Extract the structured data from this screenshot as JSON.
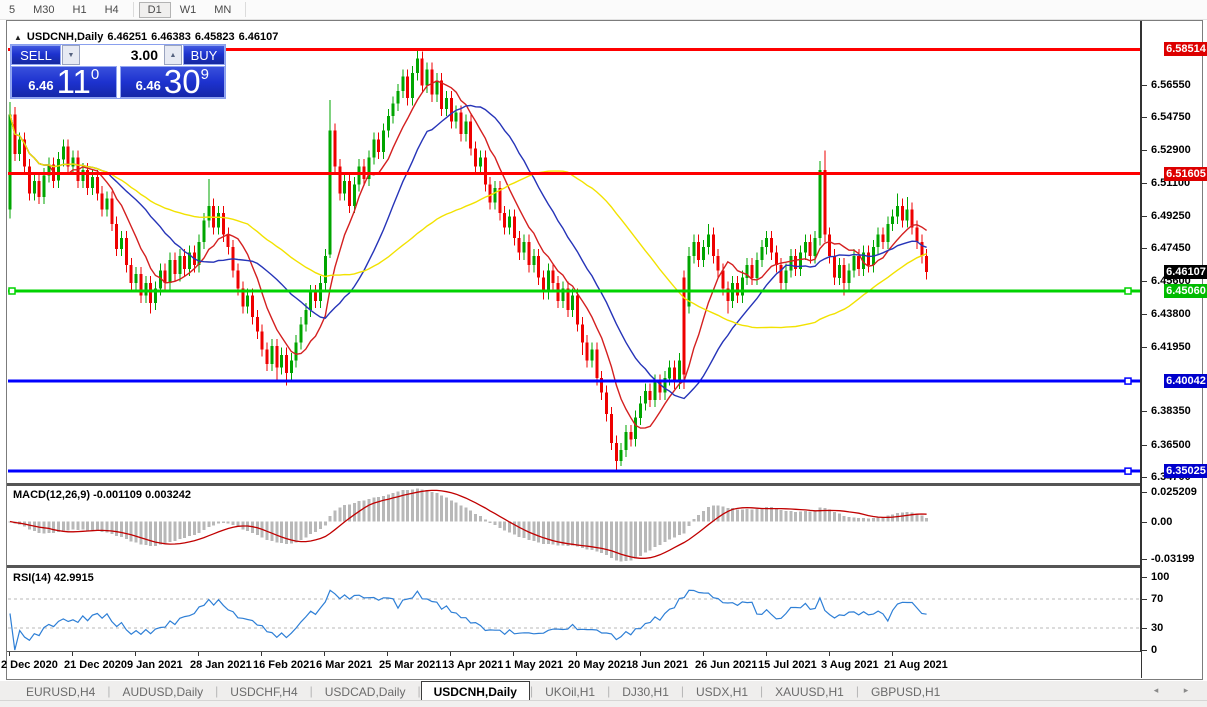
{
  "toolbar": {
    "items": [
      "5",
      "M30",
      "H1",
      "H4",
      "D1",
      "W1",
      "MN"
    ],
    "active": "D1"
  },
  "window_info": {
    "collapse_icon": "▲",
    "title": "USDCNH,Daily",
    "open": "6.46251",
    "high": "6.46383",
    "low": "6.45823",
    "close": "6.46107"
  },
  "one_click": {
    "sell_label": "SELL",
    "buy_label": "BUY",
    "volume": "3.00",
    "spin_down_icon": "▼",
    "spin_up_icon": "▲",
    "bid": {
      "prefix": "6.46",
      "big": "11",
      "sup": "0"
    },
    "ask": {
      "prefix": "6.46",
      "big": "30",
      "sup": "9"
    }
  },
  "chart_data": {
    "type": "candlestick",
    "symbol": "USDCNH",
    "timeframe": "Daily",
    "up_color": "#00a500",
    "down_color": "#ee0000",
    "y_axis": {
      "range": [
        6.3442,
        6.596
      ],
      "ticks": [
        {
          "label": "6.56550",
          "price": 6.5655
        },
        {
          "label": "6.54750",
          "price": 6.5475
        },
        {
          "label": "6.52900",
          "price": 6.529
        },
        {
          "label": "6.51100",
          "price": 6.511
        },
        {
          "label": "6.49250",
          "price": 6.4925
        },
        {
          "label": "6.47450",
          "price": 6.4745
        },
        {
          "label": "6.45600",
          "price": 6.456
        },
        {
          "label": "6.43800",
          "price": 6.438
        },
        {
          "label": "6.41950",
          "price": 6.4195
        },
        {
          "label": "6.38350",
          "price": 6.3835
        },
        {
          "label": "6.36500",
          "price": 6.365
        },
        {
          "label": "6.34700",
          "price": 6.347
        }
      ]
    },
    "x_axis": {
      "labels": [
        {
          "label": "2 Dec 2020",
          "index": 0
        },
        {
          "label": "21 Dec 2020",
          "index": 13
        },
        {
          "label": "9 Jan 2021",
          "index": 26
        },
        {
          "label": "28 Jan 2021",
          "index": 39
        },
        {
          "label": "16 Feb 2021",
          "index": 52
        },
        {
          "label": "6 Mar 2021",
          "index": 65
        },
        {
          "label": "25 Mar 2021",
          "index": 78
        },
        {
          "label": "13 Apr 2021",
          "index": 91
        },
        {
          "label": "1 May 2021",
          "index": 104
        },
        {
          "label": "20 May 2021",
          "index": 117
        },
        {
          "label": "8 Jun 2021",
          "index": 130
        },
        {
          "label": "26 Jun 2021",
          "index": 143
        },
        {
          "label": "15 Jul 2021",
          "index": 156
        },
        {
          "label": "3 Aug 2021",
          "index": 169
        },
        {
          "label": "21 Aug 2021",
          "index": 182
        }
      ]
    },
    "moving_averages": [
      {
        "period": 9,
        "color": "#d42020"
      },
      {
        "period": 21,
        "color": "#2634b8"
      },
      {
        "period": 50,
        "color": "#f2e200"
      }
    ],
    "hlines": [
      {
        "price": 6.58514,
        "label": "6.58514",
        "color": "#ff0000",
        "badge_bg": "#dd0000",
        "handles": []
      },
      {
        "price": 6.51605,
        "label": "6.51605",
        "color": "#ff0000",
        "badge_bg": "#dd0000",
        "handles": []
      },
      {
        "price": 6.4506,
        "label": "6.45060",
        "color": "#00d300",
        "badge_bg": "#00bb00",
        "handles": [
          "left",
          "right"
        ]
      },
      {
        "price": 6.40042,
        "label": "6.40042",
        "color": "#0000ff",
        "badge_bg": "#0000cc",
        "handles": [
          "right"
        ]
      },
      {
        "price": 6.35025,
        "label": "6.35025",
        "color": "#0000ff",
        "badge_bg": "#0000cc",
        "handles": [
          "right"
        ]
      }
    ],
    "current_price": {
      "price": 6.46107,
      "label": "6.46107",
      "badge_bg": "#000000"
    },
    "candles": [
      [
        6.496,
        6.556,
        6.491,
        6.549
      ],
      [
        6.549,
        6.553,
        6.523,
        6.527
      ],
      [
        6.527,
        6.539,
        6.523,
        6.535
      ],
      [
        6.535,
        6.539,
        6.516,
        6.52
      ],
      [
        6.52,
        6.524,
        6.501,
        6.505
      ],
      [
        6.505,
        6.516,
        6.501,
        6.512
      ],
      [
        6.512,
        6.516,
        6.499,
        6.503
      ],
      [
        6.503,
        6.519,
        6.499,
        6.515
      ],
      [
        6.515,
        6.525,
        6.511,
        6.521
      ],
      [
        6.521,
        6.525,
        6.508,
        6.512
      ],
      [
        6.512,
        6.528,
        6.508,
        6.524
      ],
      [
        6.524,
        6.535,
        6.52,
        6.531
      ],
      [
        6.531,
        6.535,
        6.516,
        6.52
      ],
      [
        6.52,
        6.529,
        6.516,
        6.525
      ],
      [
        6.525,
        6.529,
        6.508,
        6.512
      ],
      [
        6.512,
        6.522,
        6.508,
        6.518
      ],
      [
        6.518,
        6.522,
        6.504,
        6.508
      ],
      [
        6.508,
        6.518,
        6.504,
        6.514
      ],
      [
        6.514,
        6.518,
        6.501,
        6.505
      ],
      [
        6.505,
        6.509,
        6.492,
        6.496
      ],
      [
        6.496,
        6.506,
        6.492,
        6.502
      ],
      [
        6.502,
        6.506,
        6.484,
        6.488
      ],
      [
        6.488,
        6.492,
        6.47,
        6.474
      ],
      [
        6.474,
        6.484,
        6.47,
        6.48
      ],
      [
        6.48,
        6.484,
        6.461,
        6.465
      ],
      [
        6.465,
        6.469,
        6.451,
        6.455
      ],
      [
        6.455,
        6.464,
        6.451,
        6.46
      ],
      [
        6.46,
        6.464,
        6.444,
        6.448
      ],
      [
        6.448,
        6.459,
        6.444,
        6.455
      ],
      [
        6.455,
        6.459,
        6.438,
        6.444
      ],
      [
        6.444,
        6.456,
        6.44,
        6.452
      ],
      [
        6.452,
        6.466,
        6.448,
        6.462
      ],
      [
        6.462,
        6.466,
        6.451,
        6.455
      ],
      [
        6.455,
        6.472,
        6.451,
        6.468
      ],
      [
        6.468,
        6.472,
        6.456,
        6.46
      ],
      [
        6.46,
        6.474,
        6.456,
        6.47
      ],
      [
        6.47,
        6.474,
        6.459,
        6.463
      ],
      [
        6.463,
        6.476,
        6.459,
        6.472
      ],
      [
        6.472,
        6.476,
        6.461,
        6.465
      ],
      [
        6.465,
        6.482,
        6.461,
        6.478
      ],
      [
        6.478,
        6.494,
        6.474,
        6.49
      ],
      [
        6.49,
        6.513,
        6.486,
        6.498
      ],
      [
        6.498,
        6.502,
        6.482,
        6.486
      ],
      [
        6.486,
        6.498,
        6.482,
        6.494
      ],
      [
        6.494,
        6.498,
        6.478,
        6.482
      ],
      [
        6.482,
        6.486,
        6.471,
        6.475
      ],
      [
        6.475,
        6.479,
        6.458,
        6.462
      ],
      [
        6.462,
        6.466,
        6.448,
        6.452
      ],
      [
        6.452,
        6.456,
        6.438,
        6.442
      ],
      [
        6.442,
        6.452,
        6.438,
        6.448
      ],
      [
        6.448,
        6.452,
        6.432,
        6.436
      ],
      [
        6.436,
        6.44,
        6.424,
        6.428
      ],
      [
        6.428,
        6.432,
        6.414,
        6.418
      ],
      [
        6.418,
        6.422,
        6.406,
        6.41
      ],
      [
        6.41,
        6.424,
        6.406,
        6.42
      ],
      [
        6.42,
        6.424,
        6.401,
        6.408
      ],
      [
        6.408,
        6.419,
        6.404,
        6.415
      ],
      [
        6.415,
        6.419,
        6.398,
        6.405
      ],
      [
        6.405,
        6.416,
        6.401,
        6.412
      ],
      [
        6.412,
        6.426,
        6.408,
        6.422
      ],
      [
        6.422,
        6.436,
        6.418,
        6.432
      ],
      [
        6.432,
        6.444,
        6.428,
        6.44
      ],
      [
        6.44,
        6.454,
        6.436,
        6.45
      ],
      [
        6.45,
        6.454,
        6.441,
        6.445
      ],
      [
        6.445,
        6.459,
        6.441,
        6.455
      ],
      [
        6.455,
        6.474,
        6.451,
        6.47
      ],
      [
        6.471,
        6.557,
        6.469,
        6.54
      ],
      [
        6.54,
        6.544,
        6.516,
        6.52
      ],
      [
        6.52,
        6.524,
        6.501,
        6.505
      ],
      [
        6.505,
        6.516,
        6.501,
        6.512
      ],
      [
        6.512,
        6.516,
        6.494,
        6.498
      ],
      [
        6.498,
        6.514,
        6.494,
        6.51
      ],
      [
        6.51,
        6.524,
        6.506,
        6.52
      ],
      [
        6.52,
        6.524,
        6.509,
        6.513
      ],
      [
        6.513,
        6.529,
        6.509,
        6.525
      ],
      [
        6.525,
        6.539,
        6.521,
        6.535
      ],
      [
        6.535,
        6.539,
        6.524,
        6.528
      ],
      [
        6.528,
        6.544,
        6.524,
        6.54
      ],
      [
        6.54,
        6.552,
        6.536,
        6.548
      ],
      [
        6.548,
        6.559,
        6.544,
        6.555
      ],
      [
        6.555,
        6.566,
        6.551,
        6.562
      ],
      [
        6.562,
        6.574,
        6.558,
        6.57
      ],
      [
        6.57,
        6.574,
        6.554,
        6.558
      ],
      [
        6.558,
        6.576,
        6.554,
        6.572
      ],
      [
        6.572,
        6.5855,
        6.568,
        6.58
      ],
      [
        6.58,
        6.584,
        6.561,
        6.565
      ],
      [
        6.565,
        6.578,
        6.561,
        6.574
      ],
      [
        6.574,
        6.578,
        6.556,
        6.56
      ],
      [
        6.56,
        6.572,
        6.556,
        6.568
      ],
      [
        6.568,
        6.572,
        6.548,
        6.552
      ],
      [
        6.552,
        6.562,
        6.548,
        6.558
      ],
      [
        6.558,
        6.562,
        6.541,
        6.545
      ],
      [
        6.545,
        6.554,
        6.541,
        6.55
      ],
      [
        6.55,
        6.554,
        6.534,
        6.538
      ],
      [
        6.538,
        6.549,
        6.534,
        6.545
      ],
      [
        6.545,
        6.549,
        6.526,
        6.53
      ],
      [
        6.53,
        6.534,
        6.516,
        6.52
      ],
      [
        6.52,
        6.529,
        6.516,
        6.525
      ],
      [
        6.525,
        6.529,
        6.506,
        6.51
      ],
      [
        6.51,
        6.514,
        6.496,
        6.5
      ],
      [
        6.5,
        6.512,
        6.496,
        6.508
      ],
      [
        6.508,
        6.512,
        6.49,
        6.494
      ],
      [
        6.494,
        6.498,
        6.482,
        6.486
      ],
      [
        6.486,
        6.496,
        6.482,
        6.492
      ],
      [
        6.492,
        6.496,
        6.476,
        6.48
      ],
      [
        6.48,
        6.484,
        6.468,
        6.472
      ],
      [
        6.472,
        6.482,
        6.468,
        6.478
      ],
      [
        6.478,
        6.482,
        6.461,
        6.465
      ],
      [
        6.465,
        6.474,
        6.461,
        6.47
      ],
      [
        6.47,
        6.474,
        6.454,
        6.458
      ],
      [
        6.458,
        6.462,
        6.446,
        6.45
      ],
      [
        6.45,
        6.466,
        6.446,
        6.462
      ],
      [
        6.462,
        6.466,
        6.451,
        6.455
      ],
      [
        6.455,
        6.459,
        6.441,
        6.445
      ],
      [
        6.445,
        6.456,
        6.441,
        6.452
      ],
      [
        6.452,
        6.456,
        6.436,
        6.44
      ],
      [
        6.44,
        6.452,
        6.436,
        6.448
      ],
      [
        6.448,
        6.452,
        6.428,
        6.432
      ],
      [
        6.432,
        6.436,
        6.415,
        6.422
      ],
      [
        6.422,
        6.426,
        6.408,
        6.412
      ],
      [
        6.412,
        6.422,
        6.408,
        6.418
      ],
      [
        6.418,
        6.422,
        6.398,
        6.402
      ],
      [
        6.402,
        6.406,
        6.39,
        6.394
      ],
      [
        6.394,
        6.398,
        6.378,
        6.382
      ],
      [
        6.382,
        6.386,
        6.362,
        6.366
      ],
      [
        6.366,
        6.37,
        6.3505,
        6.356
      ],
      [
        6.356,
        6.366,
        6.353,
        6.362
      ],
      [
        6.362,
        6.376,
        6.358,
        6.372
      ],
      [
        6.372,
        6.376,
        6.364,
        6.368
      ],
      [
        6.368,
        6.384,
        6.364,
        6.38
      ],
      [
        6.38,
        6.392,
        6.376,
        6.388
      ],
      [
        6.388,
        6.399,
        6.384,
        6.395
      ],
      [
        6.395,
        6.399,
        6.386,
        6.39
      ],
      [
        6.39,
        6.404,
        6.386,
        6.4
      ],
      [
        6.4,
        6.404,
        6.39,
        6.394
      ],
      [
        6.394,
        6.406,
        6.39,
        6.402
      ],
      [
        6.402,
        6.412,
        6.398,
        6.408
      ],
      [
        6.408,
        6.412,
        6.396,
        6.4
      ],
      [
        6.4,
        6.416,
        6.396,
        6.412
      ],
      [
        6.458,
        6.462,
        6.396,
        6.404
      ],
      [
        6.442,
        6.475,
        6.438,
        6.47
      ],
      [
        6.47,
        6.482,
        6.466,
        6.478
      ],
      [
        6.478,
        6.482,
        6.464,
        6.468
      ],
      [
        6.468,
        6.479,
        6.464,
        6.475
      ],
      [
        6.475,
        6.488,
        6.471,
        6.482
      ],
      [
        6.482,
        6.486,
        6.466,
        6.47
      ],
      [
        6.47,
        6.474,
        6.458,
        6.462
      ],
      [
        6.462,
        6.466,
        6.448,
        6.452
      ],
      [
        6.452,
        6.456,
        6.438,
        6.445
      ],
      [
        6.445,
        6.459,
        6.441,
        6.455
      ],
      [
        6.455,
        6.459,
        6.444,
        6.448
      ],
      [
        6.448,
        6.462,
        6.444,
        6.458
      ],
      [
        6.458,
        6.469,
        6.454,
        6.465
      ],
      [
        6.465,
        6.469,
        6.454,
        6.458
      ],
      [
        6.458,
        6.472,
        6.454,
        6.468
      ],
      [
        6.468,
        6.479,
        6.464,
        6.475
      ],
      [
        6.475,
        6.484,
        6.471,
        6.48
      ],
      [
        6.48,
        6.484,
        6.468,
        6.472
      ],
      [
        6.472,
        6.476,
        6.461,
        6.465
      ],
      [
        6.465,
        6.469,
        6.451,
        6.455
      ],
      [
        6.455,
        6.466,
        6.451,
        6.462
      ],
      [
        6.462,
        6.474,
        6.458,
        6.47
      ],
      [
        6.47,
        6.474,
        6.459,
        6.463
      ],
      [
        6.463,
        6.476,
        6.459,
        6.472
      ],
      [
        6.472,
        6.482,
        6.468,
        6.478
      ],
      [
        6.478,
        6.482,
        6.466,
        6.47
      ],
      [
        6.47,
        6.484,
        6.466,
        6.48
      ],
      [
        6.48,
        6.523,
        6.476,
        6.518
      ],
      [
        6.518,
        6.529,
        6.478,
        6.482
      ],
      [
        6.482,
        6.486,
        6.466,
        6.47
      ],
      [
        6.47,
        6.474,
        6.454,
        6.458
      ],
      [
        6.458,
        6.469,
        6.454,
        6.465
      ],
      [
        6.465,
        6.469,
        6.448,
        6.455
      ],
      [
        6.455,
        6.466,
        6.451,
        6.462
      ],
      [
        6.462,
        6.474,
        6.458,
        6.47
      ],
      [
        6.47,
        6.474,
        6.459,
        6.463
      ],
      [
        6.463,
        6.476,
        6.459,
        6.472
      ],
      [
        6.472,
        6.476,
        6.461,
        6.465
      ],
      [
        6.465,
        6.479,
        6.461,
        6.475
      ],
      [
        6.475,
        6.486,
        6.471,
        6.482
      ],
      [
        6.482,
        6.486,
        6.474,
        6.478
      ],
      [
        6.478,
        6.492,
        6.474,
        6.488
      ],
      [
        6.488,
        6.496,
        6.484,
        6.492
      ],
      [
        6.492,
        6.505,
        6.488,
        6.498
      ],
      [
        6.498,
        6.502,
        6.486,
        6.49
      ],
      [
        6.49,
        6.503,
        6.486,
        6.496
      ],
      [
        6.496,
        6.5,
        6.482,
        6.486
      ],
      [
        6.486,
        6.49,
        6.474,
        6.478
      ],
      [
        6.478,
        6.482,
        6.466,
        6.47
      ],
      [
        6.47,
        6.474,
        6.457,
        6.4611
      ]
    ],
    "macd": {
      "label": "MACD(12,26,9) -0.001109 0.003242",
      "fast": 12,
      "slow": 26,
      "signal": 9,
      "current_macd": "-0.001109",
      "current_signal": "0.003242",
      "hist_color": "#b8b8b8",
      "signal_color": "#c00000",
      "axis_ticks": [
        {
          "label": "0.025209",
          "value": 0.025209
        },
        {
          "label": "0.00",
          "value": 0
        },
        {
          "label": "-0.03199",
          "value": -0.03199
        }
      ]
    },
    "rsi": {
      "label": "RSI(14) 42.9915",
      "period": 14,
      "value": 42.9915,
      "color": "#2e7fd6",
      "levels": [
        70,
        30
      ],
      "axis_ticks": [
        {
          "label": "100",
          "value": 100
        },
        {
          "label": "70",
          "value": 70
        },
        {
          "label": "30",
          "value": 30
        },
        {
          "label": "0",
          "value": 0
        }
      ]
    }
  },
  "tabs": {
    "items": [
      "EURUSD,H4",
      "AUDUSD,Daily",
      "USDCHF,H4",
      "USDCAD,Daily",
      "USDCNH,Daily",
      "UKOil,H1",
      "DJ30,H1",
      "USDX,H1",
      "XAUUSD,H1",
      "GBPUSD,H1"
    ],
    "active": "USDCNH,Daily",
    "scroll_left_icon": "◂",
    "scroll_right_icon": "▸"
  }
}
